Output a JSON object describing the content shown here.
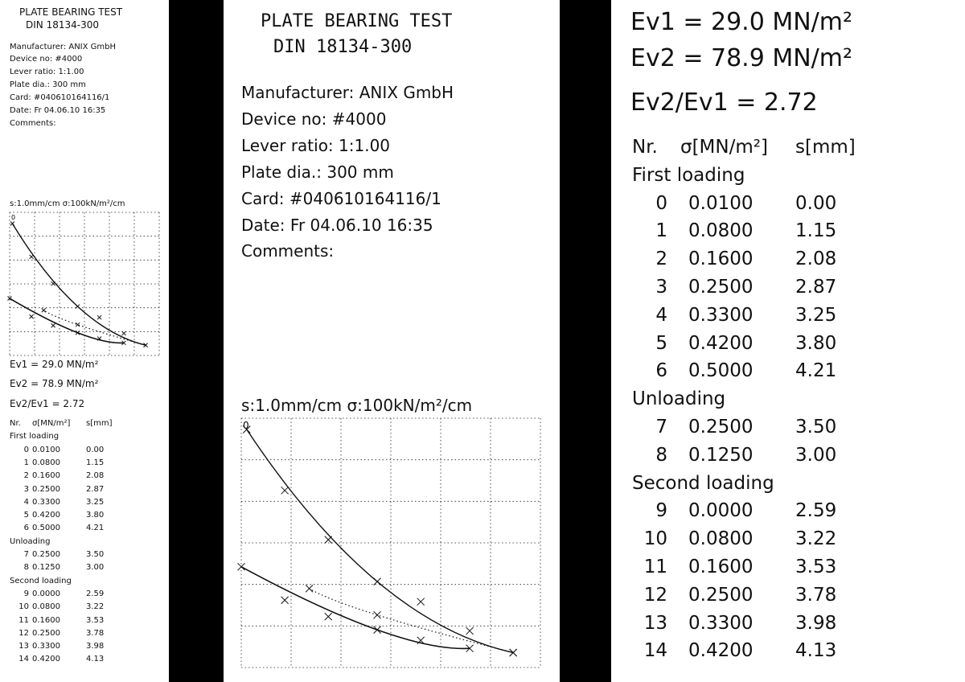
{
  "header": {
    "title": "PLATE BEARING TEST",
    "standard": "DIN 18134-300",
    "manufacturer": "Manufacturer: ANIX GmbH",
    "device": "Device no: #4000",
    "lever": "Lever ratio: 1:1.00",
    "plate": "Plate dia.: 300 mm",
    "card": "Card: #040610164116/1",
    "date": "Date: Fr 04.06.10 16:35",
    "comments": "Comments:"
  },
  "chart": {
    "scale_label": "s:1.0mm/cm σ:100kN/m²/cm",
    "origin_label": "0"
  },
  "results": {
    "ev1": "Ev1 = 29.0 MN/m²",
    "ev2": "Ev2 = 78.9 MN/m²",
    "ratio": "Ev2/Ev1 = 2.72"
  },
  "table": {
    "col_nr": "Nr.",
    "col_sigma": "σ[MN/m²]",
    "col_s": "s[mm]",
    "sections": [
      {
        "label": "First loading",
        "rows": [
          {
            "nr": "0",
            "sigma": "0.0100",
            "s": "0.00"
          },
          {
            "nr": "1",
            "sigma": "0.0800",
            "s": "1.15"
          },
          {
            "nr": "2",
            "sigma": "0.1600",
            "s": "2.08"
          },
          {
            "nr": "3",
            "sigma": "0.2500",
            "s": "2.87"
          },
          {
            "nr": "4",
            "sigma": "0.3300",
            "s": "3.25"
          },
          {
            "nr": "5",
            "sigma": "0.4200",
            "s": "3.80"
          },
          {
            "nr": "6",
            "sigma": "0.5000",
            "s": "4.21"
          }
        ]
      },
      {
        "label": "Unloading",
        "rows": [
          {
            "nr": "7",
            "sigma": "0.2500",
            "s": "3.50"
          },
          {
            "nr": "8",
            "sigma": "0.1250",
            "s": "3.00"
          }
        ]
      },
      {
        "label": "Second loading",
        "rows": [
          {
            "nr": "9",
            "sigma": "0.0000",
            "s": "2.59"
          },
          {
            "nr": "10",
            "sigma": "0.0800",
            "s": "3.22"
          },
          {
            "nr": "11",
            "sigma": "0.1600",
            "s": "3.53"
          },
          {
            "nr": "12",
            "sigma": "0.2500",
            "s": "3.78"
          },
          {
            "nr": "13",
            "sigma": "0.3300",
            "s": "3.98"
          },
          {
            "nr": "14",
            "sigma": "0.4200",
            "s": "4.13"
          }
        ]
      }
    ]
  },
  "chart_data": {
    "type": "scatter",
    "xlabel": "",
    "ylabel": "",
    "series": [
      {
        "name": "First loading",
        "points": [
          [
            0.01,
            0.0
          ],
          [
            0.08,
            1.15
          ],
          [
            0.16,
            2.08
          ],
          [
            0.25,
            2.87
          ],
          [
            0.33,
            3.25
          ],
          [
            0.42,
            3.8
          ],
          [
            0.5,
            4.21
          ]
        ]
      },
      {
        "name": "Unloading",
        "points": [
          [
            0.5,
            4.21
          ],
          [
            0.25,
            3.5
          ],
          [
            0.125,
            3.0
          ]
        ]
      },
      {
        "name": "Second loading",
        "points": [
          [
            0.0,
            2.59
          ],
          [
            0.08,
            3.22
          ],
          [
            0.16,
            3.53
          ],
          [
            0.25,
            3.78
          ],
          [
            0.33,
            3.98
          ],
          [
            0.42,
            4.13
          ]
        ]
      }
    ]
  }
}
